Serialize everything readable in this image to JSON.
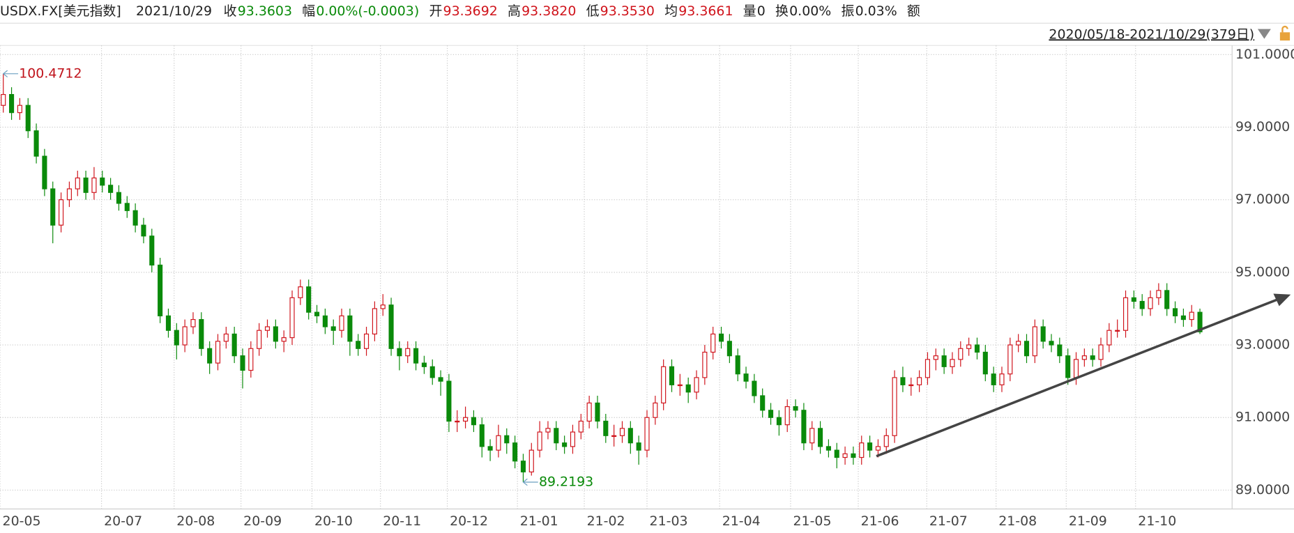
{
  "header": {
    "symbol": "USDX.FX[美元指数]",
    "date": "2021/10/29",
    "fields": [
      {
        "label": "收",
        "value": "93.3603",
        "color": "#0a8a0a"
      },
      {
        "label": "幅",
        "value": "0.00%(-0.0003)",
        "color": "#0a8a0a"
      },
      {
        "label": "开",
        "value": "93.3692",
        "color": "#d0141c"
      },
      {
        "label": "高",
        "value": "93.3820",
        "color": "#d0141c"
      },
      {
        "label": "低",
        "value": "93.3530",
        "color": "#d0141c"
      },
      {
        "label": "均",
        "value": "93.3661",
        "color": "#d0141c"
      },
      {
        "label": "量",
        "value": "0",
        "color": "#222222"
      },
      {
        "label": "换",
        "value": "0.00%",
        "color": "#222222"
      },
      {
        "label": "振",
        "value": "0.03%",
        "color": "#222222"
      },
      {
        "label": "额"
      }
    ],
    "range": "2020/05/18-2021/10/29(379日)"
  },
  "chart_data": {
    "type": "candlestick",
    "open": [
      99.6,
      99.9,
      99.4,
      99.6,
      98.9,
      98.2,
      97.3,
      96.3,
      97.0,
      97.3,
      97.6,
      97.2,
      97.6,
      97.4,
      97.2,
      96.9,
      96.7,
      96.3,
      96.0,
      95.2,
      93.8,
      93.4,
      93.0,
      93.5,
      93.7,
      92.9,
      92.5,
      93.1,
      93.3,
      92.7,
      92.3,
      92.9,
      93.4,
      93.5,
      93.1,
      93.2,
      94.3,
      94.6,
      93.9,
      93.8,
      93.5,
      93.4,
      93.8,
      93.1,
      92.9,
      93.3,
      94.0,
      94.1,
      92.9,
      92.7,
      92.9,
      92.5,
      92.4,
      92.1,
      92.0,
      90.9,
      90.9,
      91.0,
      90.8,
      90.2,
      90.1,
      90.5,
      90.3,
      89.8,
      89.5,
      90.1,
      90.6,
      90.7,
      90.3,
      90.2,
      90.6,
      90.9,
      91.4,
      90.9,
      90.5,
      90.5,
      90.7,
      90.3,
      90.1,
      91.0,
      91.4,
      92.4,
      91.9,
      91.9,
      91.7,
      92.1,
      92.8,
      93.3,
      93.1,
      92.7,
      92.2,
      92.0,
      91.6,
      91.2,
      91.0,
      90.8,
      91.3,
      91.2,
      90.3,
      90.7,
      90.2,
      90.1,
      89.9,
      90.0,
      89.9,
      90.3,
      90.1,
      90.2,
      90.5,
      92.1,
      91.9,
      91.9,
      92.1,
      92.6,
      92.7,
      92.4,
      92.6,
      92.9,
      93.0,
      92.8,
      92.2,
      91.9,
      92.2,
      93.0,
      93.1,
      92.7,
      93.5,
      93.1,
      93.0,
      92.7,
      92.1,
      92.6,
      92.7,
      92.6,
      93.0,
      93.4,
      93.4,
      94.3,
      94.2,
      94.0,
      94.3,
      94.5,
      94.0,
      93.8,
      93.7,
      93.9
    ],
    "high": [
      100.4712,
      100.1,
      99.8,
      99.8,
      99.1,
      98.4,
      97.5,
      97.2,
      97.5,
      97.8,
      97.8,
      97.9,
      97.8,
      97.6,
      97.4,
      97.1,
      96.9,
      96.5,
      96.2,
      95.4,
      94.0,
      93.6,
      93.7,
      93.9,
      93.9,
      93.1,
      93.3,
      93.5,
      93.5,
      92.9,
      93.1,
      93.6,
      93.7,
      93.7,
      93.4,
      94.5,
      94.8,
      94.8,
      94.1,
      94.0,
      93.7,
      94.0,
      94.0,
      93.3,
      93.5,
      94.2,
      94.4,
      94.3,
      93.1,
      93.1,
      93.1,
      92.7,
      92.6,
      92.3,
      92.2,
      91.2,
      91.3,
      91.2,
      91.0,
      90.4,
      90.8,
      90.7,
      90.5,
      90.0,
      90.3,
      90.9,
      90.9,
      90.9,
      90.5,
      90.8,
      91.1,
      91.6,
      91.6,
      91.1,
      90.8,
      90.9,
      90.9,
      90.5,
      91.2,
      91.6,
      92.6,
      92.6,
      92.2,
      92.1,
      92.3,
      93.0,
      93.5,
      93.5,
      93.3,
      92.9,
      92.4,
      92.2,
      91.8,
      91.4,
      91.2,
      91.5,
      91.5,
      91.4,
      90.9,
      90.9,
      90.4,
      90.3,
      90.2,
      90.2,
      90.5,
      90.5,
      90.4,
      90.7,
      92.3,
      92.4,
      92.1,
      92.3,
      92.8,
      92.9,
      92.9,
      92.8,
      93.1,
      93.2,
      93.2,
      93.0,
      92.4,
      92.4,
      93.2,
      93.3,
      93.3,
      93.7,
      93.7,
      93.3,
      93.2,
      92.9,
      92.8,
      92.9,
      92.9,
      93.2,
      93.6,
      93.7,
      94.5,
      94.5,
      94.4,
      94.5,
      94.7,
      94.7,
      94.2,
      94.0,
      94.1,
      94.0
    ],
    "low": [
      99.4,
      99.2,
      99.2,
      98.7,
      98.0,
      97.1,
      95.8,
      96.1,
      96.8,
      97.1,
      97.0,
      97.0,
      97.2,
      97.0,
      96.7,
      96.5,
      96.1,
      95.8,
      95.0,
      93.6,
      93.2,
      92.6,
      92.8,
      93.3,
      92.7,
      92.2,
      92.3,
      92.9,
      92.5,
      91.8,
      92.1,
      92.7,
      93.2,
      92.9,
      92.8,
      93.0,
      94.1,
      93.7,
      93.6,
      93.3,
      93.0,
      93.2,
      92.7,
      92.7,
      92.7,
      93.1,
      93.8,
      92.7,
      92.3,
      92.5,
      92.3,
      92.2,
      91.9,
      91.6,
      90.6,
      90.6,
      90.7,
      90.6,
      89.9,
      89.8,
      89.9,
      90.0,
      89.6,
      89.2193,
      89.4,
      89.9,
      90.4,
      90.1,
      90.0,
      90.0,
      90.4,
      90.7,
      90.7,
      90.3,
      90.2,
      90.3,
      90.0,
      89.7,
      89.9,
      90.8,
      91.2,
      91.7,
      91.6,
      91.4,
      91.5,
      91.9,
      92.6,
      92.9,
      92.5,
      92.0,
      91.8,
      91.4,
      91.0,
      90.8,
      90.5,
      90.6,
      91.0,
      90.1,
      90.1,
      90.0,
      89.9,
      89.6,
      89.7,
      89.7,
      89.7,
      89.9,
      89.9,
      90.0,
      90.3,
      91.7,
      91.6,
      91.7,
      91.9,
      92.3,
      92.2,
      92.2,
      92.4,
      92.7,
      92.6,
      92.0,
      91.7,
      91.7,
      92.0,
      92.8,
      92.5,
      92.5,
      92.9,
      92.8,
      92.5,
      91.9,
      91.9,
      92.4,
      92.4,
      92.4,
      92.8,
      93.2,
      93.2,
      94.0,
      93.8,
      93.8,
      94.1,
      93.8,
      93.6,
      93.5,
      93.5,
      93.3
    ],
    "close": [
      99.9,
      99.4,
      99.6,
      98.9,
      98.2,
      97.3,
      96.3,
      97.0,
      97.3,
      97.6,
      97.2,
      97.6,
      97.4,
      97.2,
      96.9,
      96.7,
      96.3,
      96.0,
      95.2,
      93.8,
      93.4,
      93.0,
      93.5,
      93.7,
      92.9,
      92.5,
      93.1,
      93.3,
      92.7,
      92.3,
      92.9,
      93.4,
      93.5,
      93.1,
      93.2,
      94.3,
      94.6,
      93.9,
      93.8,
      93.5,
      93.4,
      93.8,
      93.1,
      92.9,
      93.3,
      94.0,
      94.1,
      92.9,
      92.7,
      92.9,
      92.5,
      92.4,
      92.1,
      92.0,
      90.9,
      90.9,
      91.0,
      90.8,
      90.2,
      90.1,
      90.5,
      90.3,
      89.8,
      89.5,
      90.1,
      90.6,
      90.7,
      90.3,
      90.2,
      90.6,
      90.9,
      91.4,
      90.9,
      90.5,
      90.5,
      90.7,
      90.3,
      90.1,
      91.0,
      91.4,
      92.4,
      91.9,
      91.9,
      91.7,
      92.1,
      92.8,
      93.3,
      93.1,
      92.7,
      92.2,
      92.0,
      91.6,
      91.2,
      91.0,
      90.8,
      91.3,
      91.2,
      90.3,
      90.7,
      90.2,
      90.1,
      89.9,
      90.0,
      89.9,
      90.3,
      90.1,
      90.2,
      90.5,
      92.1,
      91.9,
      91.9,
      92.1,
      92.6,
      92.7,
      92.4,
      92.6,
      92.9,
      93.0,
      92.8,
      92.2,
      91.9,
      92.2,
      93.0,
      93.1,
      92.7,
      93.5,
      93.1,
      93.0,
      92.7,
      92.1,
      92.6,
      92.7,
      92.6,
      93.0,
      93.4,
      93.4,
      94.3,
      94.2,
      94.0,
      94.3,
      94.5,
      94.0,
      93.8,
      93.7,
      93.9,
      93.3603
    ],
    "up_color": "#d0141c",
    "down_color": "#0a8a0a",
    "ylim": [
      88.48,
      101.25
    ],
    "yticks": [
      {
        "value": 89,
        "label": "89.0000"
      },
      {
        "value": 91,
        "label": "91.0000"
      },
      {
        "value": 93,
        "label": "93.0000"
      },
      {
        "value": 95,
        "label": "95.0000"
      },
      {
        "value": 97,
        "label": "97.0000"
      },
      {
        "value": 99,
        "label": "99.0000"
      },
      {
        "value": 101,
        "label": "101.0000"
      }
    ],
    "xlim": [
      -0.4,
      148.9
    ],
    "xticks": [
      {
        "value": -0.4,
        "label": "20-05"
      },
      {
        "value": 11.9,
        "label": "20-07"
      },
      {
        "value": 20.7,
        "label": "20-08"
      },
      {
        "value": 28.8,
        "label": "20-09"
      },
      {
        "value": 37.4,
        "label": "20-10"
      },
      {
        "value": 45.7,
        "label": "20-11"
      },
      {
        "value": 53.8,
        "label": "20-12"
      },
      {
        "value": 62.3,
        "label": "21-01"
      },
      {
        "value": 70.4,
        "label": "21-02"
      },
      {
        "value": 78,
        "label": "21-03"
      },
      {
        "value": 86.8,
        "label": "21-04"
      },
      {
        "value": 95.4,
        "label": "21-05"
      },
      {
        "value": 103.6,
        "label": "21-06"
      },
      {
        "value": 111.9,
        "label": "21-07"
      },
      {
        "value": 120.3,
        "label": "21-08"
      },
      {
        "value": 128.8,
        "label": "21-09"
      },
      {
        "value": 137.2,
        "label": "21-10"
      }
    ],
    "grid": true,
    "annotations": [
      {
        "text": "100.4712",
        "series": "high",
        "index": 0,
        "color": "#c0141c"
      },
      {
        "text": "89.2193",
        "series": "low",
        "index": 63,
        "color": "#0a8a0a"
      }
    ]
  }
}
